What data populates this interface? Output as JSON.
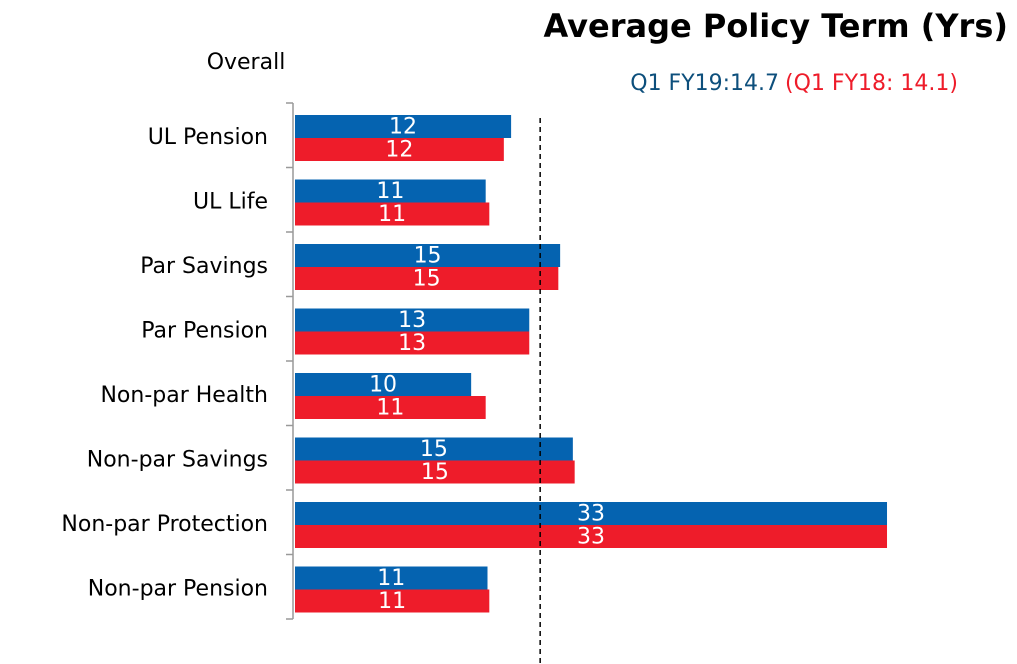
{
  "chart_data": {
    "type": "bar",
    "orientation": "horizontal",
    "title": "Average Policy Term (Yrs)",
    "group_label": "Overall",
    "categories": [
      "UL Pension",
      "UL Life",
      "Par Savings",
      "Par Pension",
      "Non-par Health",
      "Non-par Savings",
      "Non-par Protection",
      "Non-par Pension"
    ],
    "series": [
      {
        "name": "Q1 FY19:14.7",
        "color": "#0563b0",
        "values": [
          11.9,
          10.5,
          14.6,
          12.9,
          9.7,
          15.3,
          32.6,
          10.6
        ],
        "value_labels": [
          "12",
          "11",
          "15",
          "13",
          "10",
          "15",
          "33",
          "11"
        ]
      },
      {
        "name": "(Q1 FY18: 14.1)",
        "color": "#ee1c2a",
        "values": [
          11.5,
          10.7,
          14.5,
          12.9,
          10.5,
          15.4,
          32.6,
          10.7
        ],
        "value_labels": [
          "12",
          "11",
          "15",
          "13",
          "11",
          "15",
          "33",
          "11"
        ]
      }
    ],
    "reference_line": 13.5,
    "xlim": [
      0,
      36
    ]
  }
}
